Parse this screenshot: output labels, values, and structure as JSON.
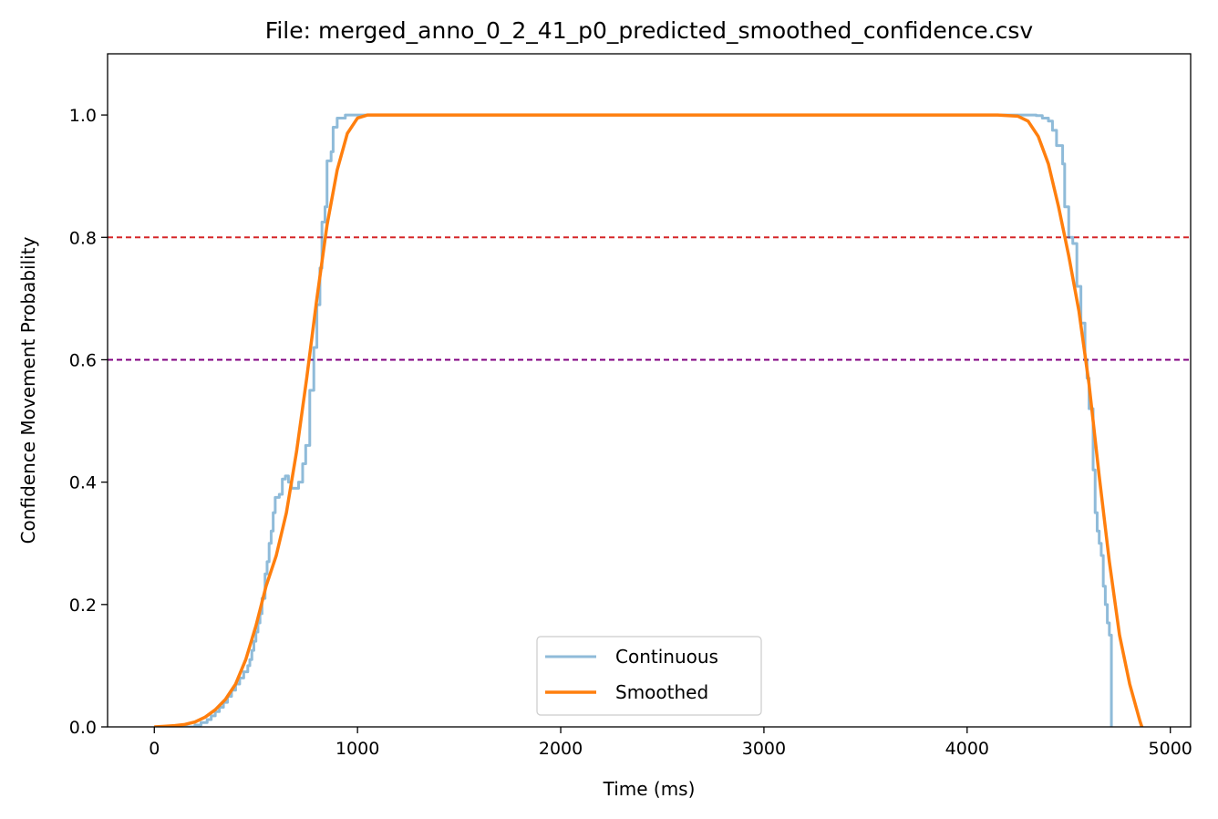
{
  "chart_data": {
    "type": "line",
    "title": "File: merged_anno_0_2_41_p0_predicted_smoothed_confidence.csv",
    "xlabel": "Time (ms)",
    "ylabel": "Confidence Movement Probability",
    "xlim": [
      -230,
      5100
    ],
    "ylim": [
      0.0,
      1.1
    ],
    "xticks": [
      0,
      1000,
      2000,
      3000,
      4000,
      5000
    ],
    "yticks": [
      0.0,
      0.2,
      0.4,
      0.6,
      0.8,
      1.0
    ],
    "xtick_labels": [
      "0",
      "1000",
      "2000",
      "3000",
      "4000",
      "5000"
    ],
    "ytick_labels": [
      "0.0",
      "0.2",
      "0.4",
      "0.6",
      "0.8",
      "1.0"
    ],
    "grid": false,
    "legend_position": "lower-center",
    "reference_lines": [
      {
        "axis": "y",
        "value": 0.8,
        "color": "#d62728",
        "style": "dashed"
      },
      {
        "axis": "y",
        "value": 0.6,
        "color": "#800080",
        "style": "dashed"
      }
    ],
    "series": [
      {
        "name": "Continuous",
        "color": "#1f77b4",
        "opacity": 0.5,
        "step": true,
        "points": [
          [
            0,
            0.0
          ],
          [
            150,
            0.0
          ],
          [
            200,
            0.003
          ],
          [
            230,
            0.007
          ],
          [
            260,
            0.012
          ],
          [
            280,
            0.018
          ],
          [
            300,
            0.025
          ],
          [
            320,
            0.032
          ],
          [
            340,
            0.04
          ],
          [
            360,
            0.05
          ],
          [
            380,
            0.06
          ],
          [
            400,
            0.07
          ],
          [
            420,
            0.08
          ],
          [
            440,
            0.09
          ],
          [
            460,
            0.1
          ],
          [
            470,
            0.11
          ],
          [
            480,
            0.125
          ],
          [
            490,
            0.14
          ],
          [
            500,
            0.155
          ],
          [
            510,
            0.17
          ],
          [
            520,
            0.185
          ],
          [
            530,
            0.21
          ],
          [
            545,
            0.25
          ],
          [
            555,
            0.27
          ],
          [
            565,
            0.3
          ],
          [
            575,
            0.32
          ],
          [
            585,
            0.35
          ],
          [
            595,
            0.375
          ],
          [
            615,
            0.38
          ],
          [
            630,
            0.405
          ],
          [
            645,
            0.41
          ],
          [
            660,
            0.4
          ],
          [
            675,
            0.39
          ],
          [
            690,
            0.39
          ],
          [
            710,
            0.4
          ],
          [
            730,
            0.43
          ],
          [
            745,
            0.46
          ],
          [
            765,
            0.55
          ],
          [
            785,
            0.62
          ],
          [
            800,
            0.69
          ],
          [
            815,
            0.75
          ],
          [
            825,
            0.825
          ],
          [
            840,
            0.85
          ],
          [
            850,
            0.925
          ],
          [
            870,
            0.94
          ],
          [
            880,
            0.98
          ],
          [
            900,
            0.995
          ],
          [
            940,
            1.0
          ],
          [
            4270,
            1.0
          ],
          [
            4340,
            0.999
          ],
          [
            4370,
            0.995
          ],
          [
            4400,
            0.99
          ],
          [
            4420,
            0.975
          ],
          [
            4440,
            0.95
          ],
          [
            4470,
            0.92
          ],
          [
            4480,
            0.85
          ],
          [
            4500,
            0.8
          ],
          [
            4520,
            0.79
          ],
          [
            4540,
            0.72
          ],
          [
            4560,
            0.66
          ],
          [
            4580,
            0.6
          ],
          [
            4590,
            0.57
          ],
          [
            4600,
            0.52
          ],
          [
            4620,
            0.42
          ],
          [
            4630,
            0.35
          ],
          [
            4640,
            0.32
          ],
          [
            4650,
            0.3
          ],
          [
            4660,
            0.28
          ],
          [
            4670,
            0.23
          ],
          [
            4680,
            0.2
          ],
          [
            4690,
            0.17
          ],
          [
            4700,
            0.15
          ],
          [
            4710,
            0.05
          ],
          [
            4710,
            0.0
          ]
        ]
      },
      {
        "name": "Smoothed",
        "color": "#ff7f0e",
        "opacity": 1.0,
        "step": false,
        "points": [
          [
            0,
            0.0
          ],
          [
            50,
            0.001
          ],
          [
            100,
            0.002
          ],
          [
            150,
            0.004
          ],
          [
            200,
            0.008
          ],
          [
            250,
            0.016
          ],
          [
            300,
            0.028
          ],
          [
            350,
            0.045
          ],
          [
            400,
            0.07
          ],
          [
            450,
            0.11
          ],
          [
            500,
            0.165
          ],
          [
            550,
            0.23
          ],
          [
            600,
            0.28
          ],
          [
            650,
            0.35
          ],
          [
            700,
            0.45
          ],
          [
            750,
            0.57
          ],
          [
            800,
            0.7
          ],
          [
            850,
            0.82
          ],
          [
            900,
            0.91
          ],
          [
            950,
            0.97
          ],
          [
            1000,
            0.995
          ],
          [
            1050,
            1.0
          ],
          [
            4150,
            1.0
          ],
          [
            4250,
            0.998
          ],
          [
            4300,
            0.99
          ],
          [
            4350,
            0.965
          ],
          [
            4400,
            0.92
          ],
          [
            4450,
            0.85
          ],
          [
            4500,
            0.77
          ],
          [
            4550,
            0.68
          ],
          [
            4600,
            0.56
          ],
          [
            4650,
            0.41
          ],
          [
            4700,
            0.27
          ],
          [
            4750,
            0.15
          ],
          [
            4800,
            0.07
          ],
          [
            4850,
            0.01
          ],
          [
            4860,
            0.0
          ]
        ]
      }
    ]
  }
}
